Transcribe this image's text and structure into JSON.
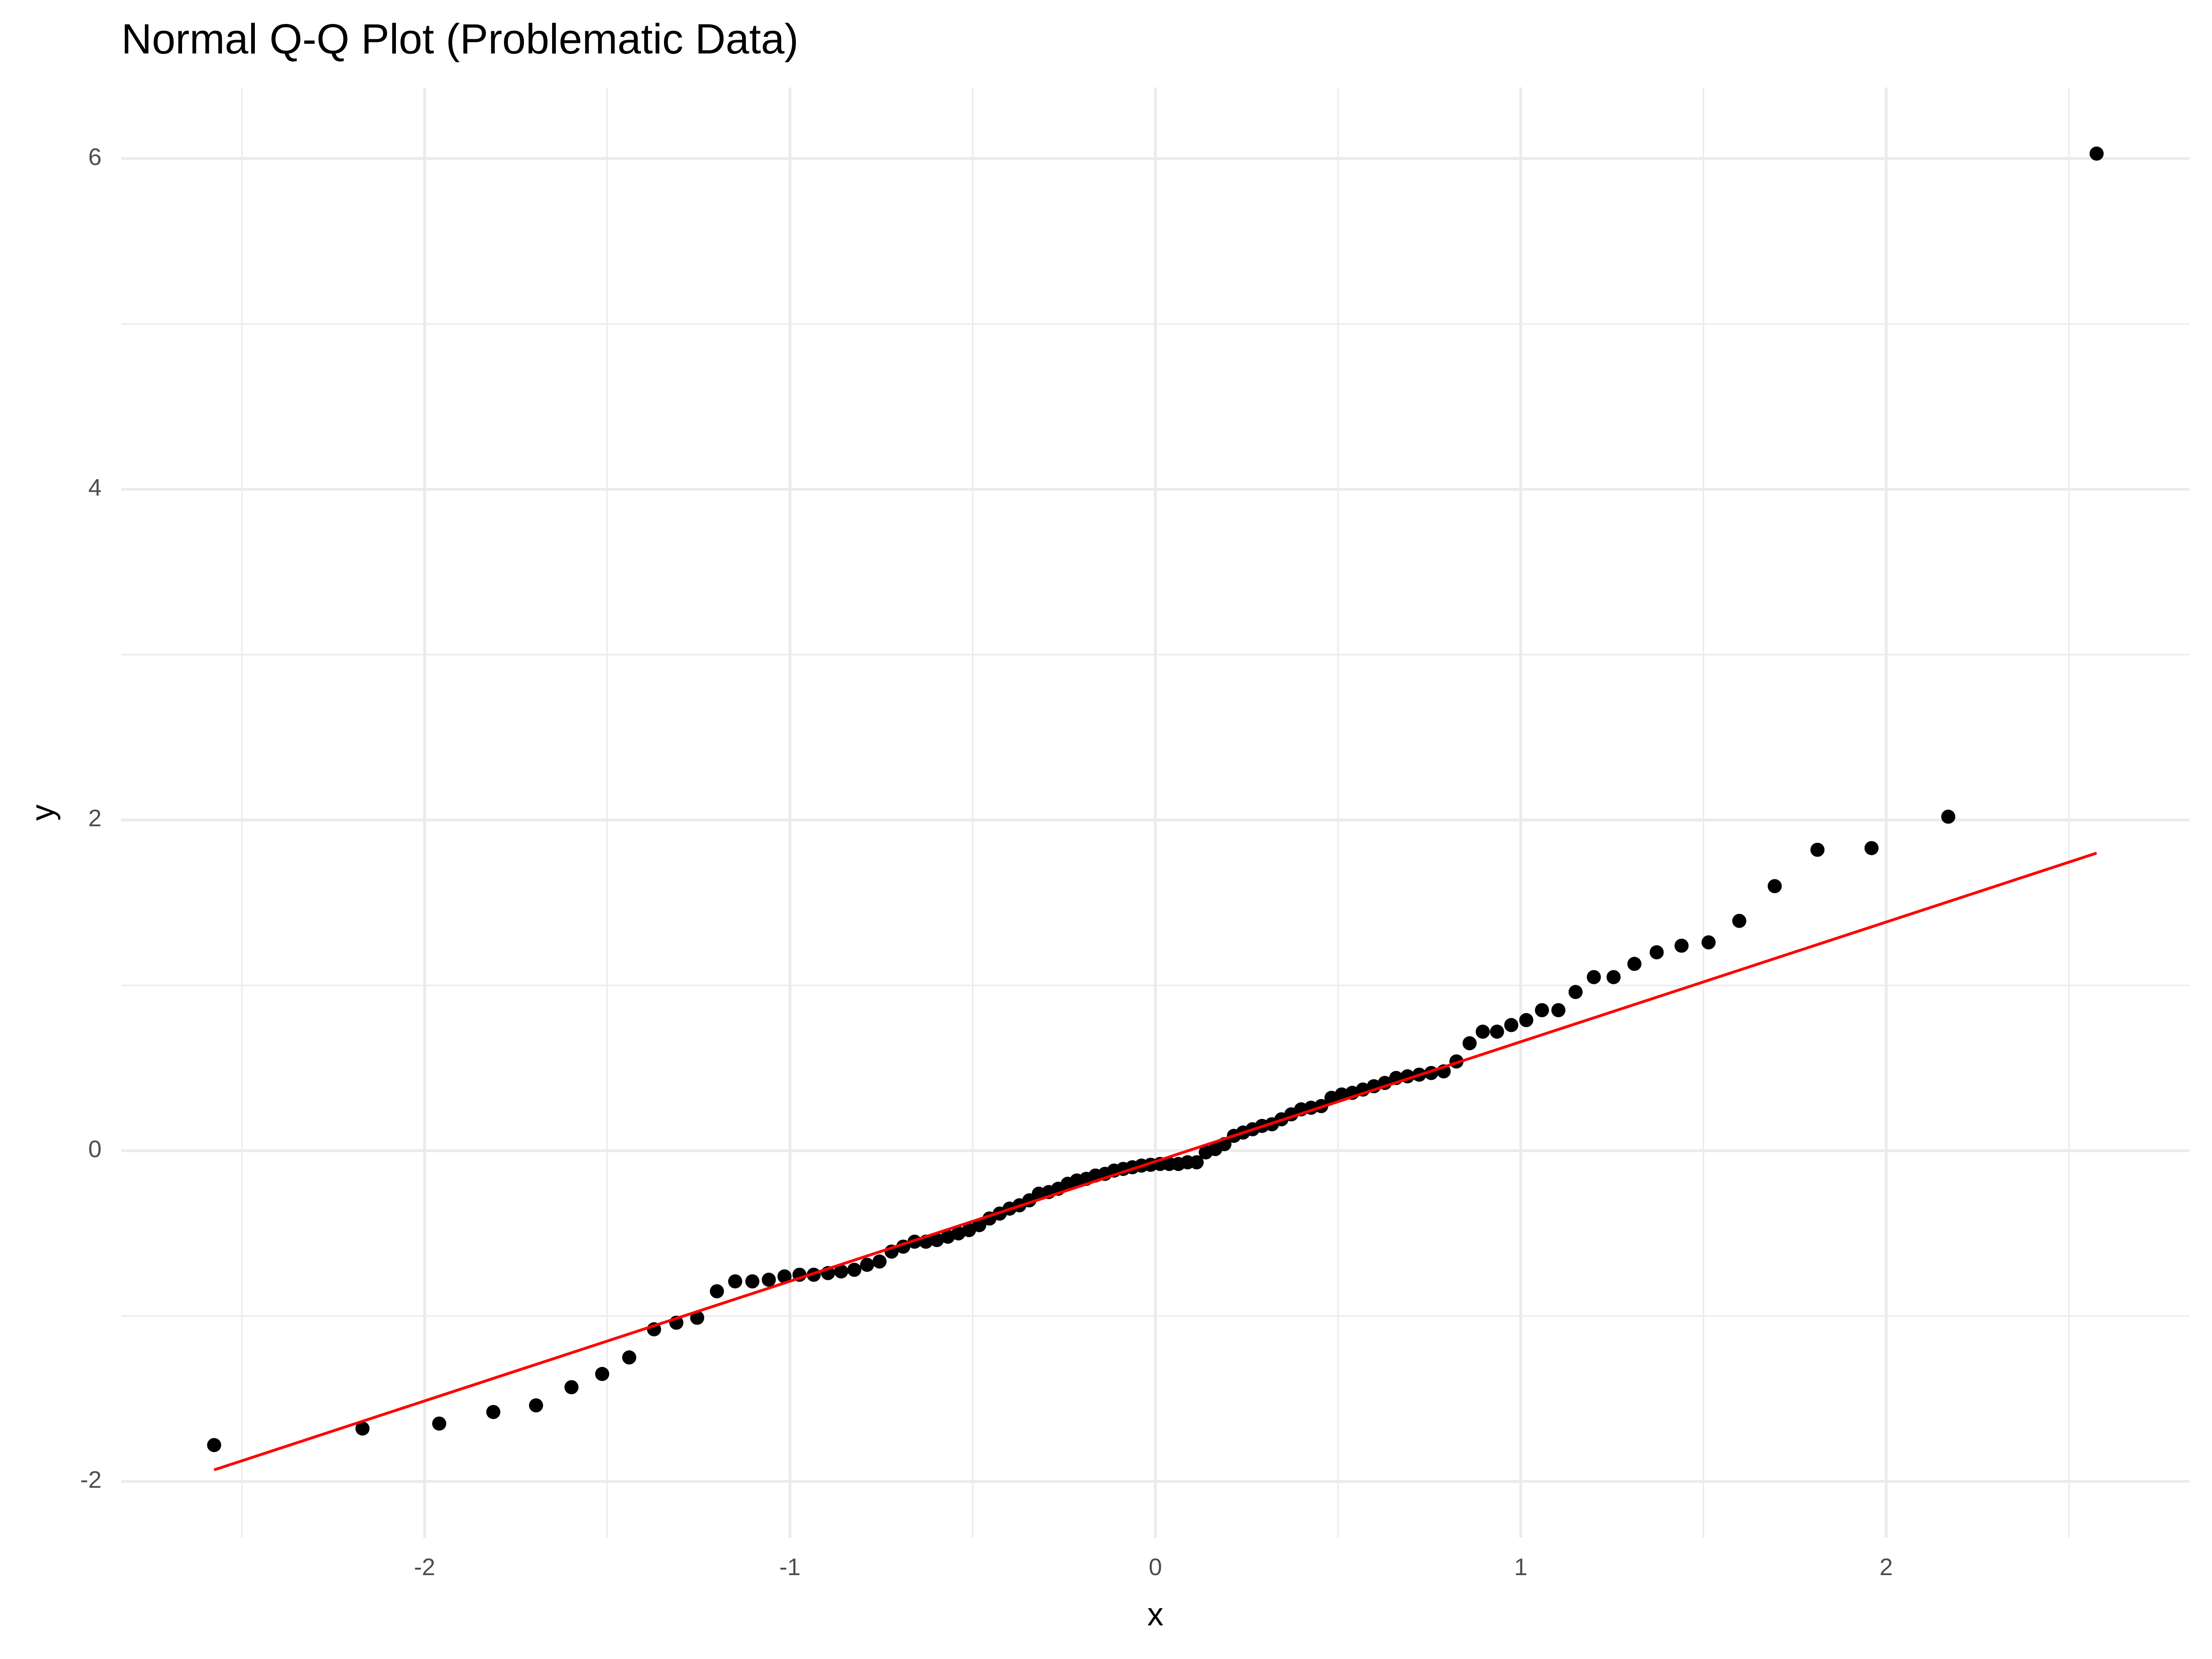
{
  "chart_data": {
    "type": "scatter",
    "title": "Normal Q-Q Plot (Problematic Data)",
    "x_label": "x",
    "y_label": "y",
    "xlim": [
      -2.83,
      2.83
    ],
    "ylim": [
      -2.34,
      6.43
    ],
    "xticks": [
      -2,
      -1,
      0,
      1,
      2
    ],
    "yticks": [
      -2,
      0,
      2,
      4,
      6
    ],
    "x_minor_ticks": [
      -2.5,
      -1.5,
      -0.5,
      0.5,
      1.5,
      2.5
    ],
    "y_minor_ticks": [
      -1,
      1,
      3,
      5
    ],
    "grid": true,
    "point_color": "#000000",
    "x": [
      -2.576,
      -2.17,
      -1.96,
      -1.812,
      -1.695,
      -1.598,
      -1.514,
      -1.44,
      -1.372,
      -1.311,
      -1.254,
      -1.2,
      -1.15,
      -1.103,
      -1.058,
      -1.015,
      -0.974,
      -0.935,
      -0.896,
      -0.86,
      -0.824,
      -0.789,
      -0.755,
      -0.722,
      -0.69,
      -0.659,
      -0.628,
      -0.598,
      -0.568,
      -0.539,
      -0.51,
      -0.482,
      -0.454,
      -0.426,
      -0.399,
      -0.372,
      -0.345,
      -0.319,
      -0.292,
      -0.266,
      -0.24,
      -0.215,
      -0.189,
      -0.164,
      -0.138,
      -0.113,
      -0.088,
      -0.063,
      -0.038,
      -0.013,
      0.013,
      0.038,
      0.063,
      0.088,
      0.113,
      0.138,
      0.164,
      0.189,
      0.215,
      0.24,
      0.266,
      0.292,
      0.319,
      0.345,
      0.372,
      0.399,
      0.426,
      0.454,
      0.482,
      0.51,
      0.539,
      0.568,
      0.598,
      0.628,
      0.659,
      0.69,
      0.722,
      0.755,
      0.789,
      0.824,
      0.86,
      0.896,
      0.935,
      0.974,
      1.015,
      1.058,
      1.103,
      1.15,
      1.2,
      1.254,
      1.311,
      1.372,
      1.44,
      1.514,
      1.598,
      1.695,
      1.812,
      1.96,
      2.17,
      2.576
    ],
    "y": [
      -1.78,
      -1.68,
      -1.65,
      -1.58,
      -1.54,
      -1.43,
      -1.35,
      -1.25,
      -1.08,
      -1.04,
      -1.01,
      -0.85,
      -0.79,
      -0.79,
      -0.78,
      -0.76,
      -0.75,
      -0.75,
      -0.74,
      -0.73,
      -0.72,
      -0.69,
      -0.67,
      -0.61,
      -0.58,
      -0.55,
      -0.55,
      -0.54,
      -0.52,
      -0.5,
      -0.48,
      -0.45,
      -0.41,
      -0.38,
      -0.35,
      -0.33,
      -0.3,
      -0.26,
      -0.25,
      -0.23,
      -0.2,
      -0.18,
      -0.17,
      -0.15,
      -0.14,
      -0.12,
      -0.11,
      -0.1,
      -0.09,
      -0.085,
      -0.08,
      -0.08,
      -0.08,
      -0.07,
      -0.07,
      -0.01,
      0.01,
      0.04,
      0.09,
      0.11,
      0.13,
      0.15,
      0.16,
      0.19,
      0.22,
      0.25,
      0.26,
      0.27,
      0.32,
      0.34,
      0.35,
      0.37,
      0.39,
      0.41,
      0.44,
      0.45,
      0.46,
      0.47,
      0.48,
      0.54,
      0.65,
      0.72,
      0.72,
      0.76,
      0.79,
      0.85,
      0.85,
      0.96,
      1.05,
      1.05,
      1.13,
      1.2,
      1.24,
      1.26,
      1.39,
      1.6,
      1.82,
      1.83,
      2.02,
      6.03
    ],
    "reference_line": {
      "color": "#ff0000",
      "x": [
        -2.576,
        2.576
      ],
      "y": [
        -1.93,
        1.8
      ]
    }
  }
}
